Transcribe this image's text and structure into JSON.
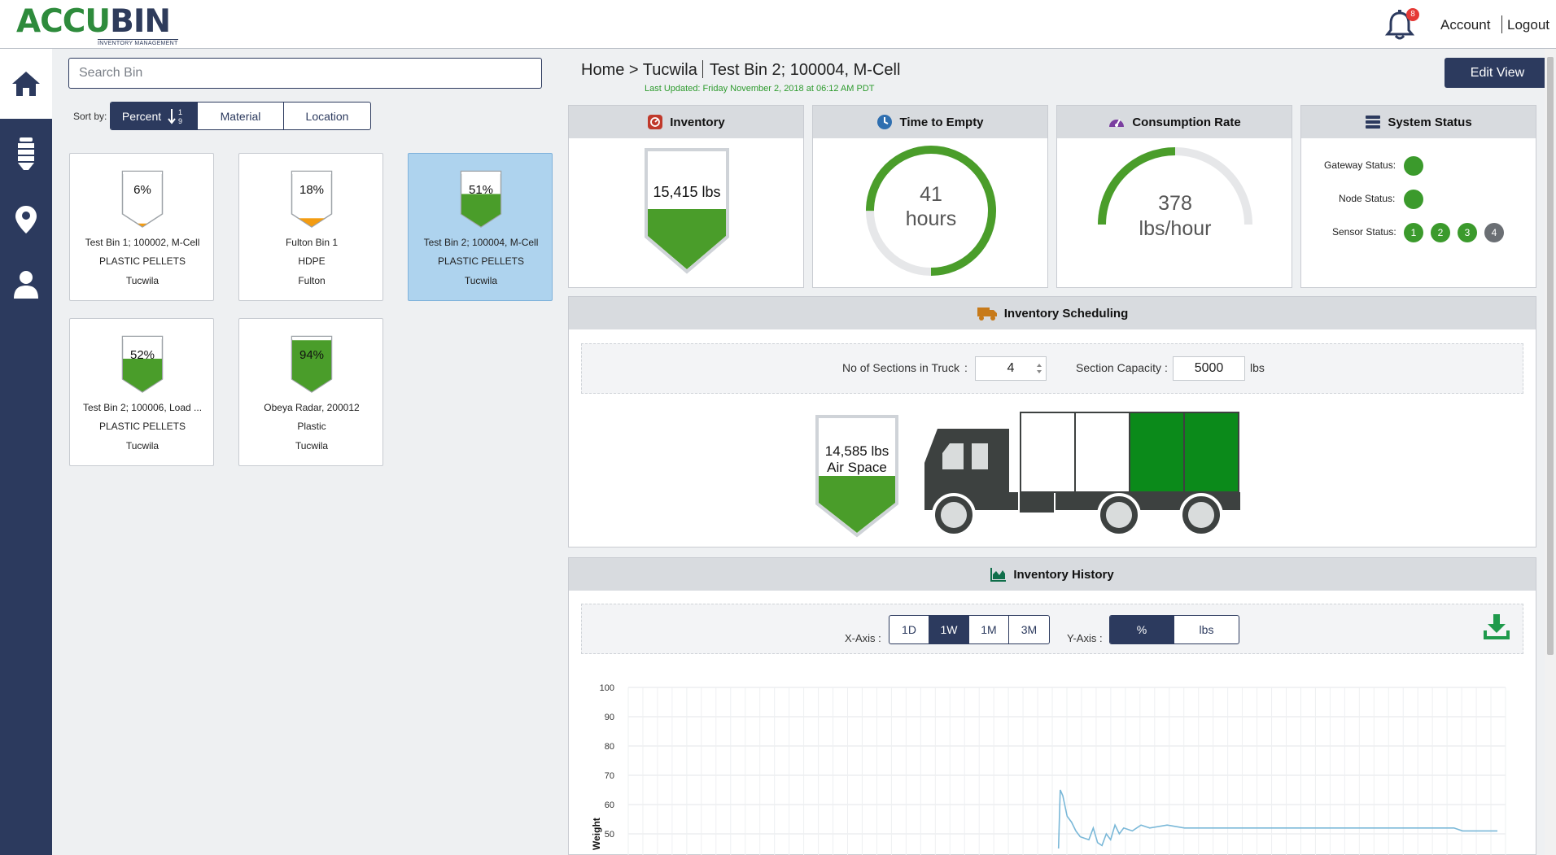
{
  "header": {
    "logo_main_accu": "ACCU",
    "logo_main_bin": "BIN",
    "logo_sub": "INVENTORY MANAGEMENT",
    "notifications_count": "8",
    "account_label": "Account",
    "logout_label": "Logout"
  },
  "sidenav": {
    "items": [
      "home-icon",
      "bin-icon",
      "location-pin-icon",
      "user-icon"
    ]
  },
  "search": {
    "placeholder": "Search Bin"
  },
  "sort": {
    "label": "Sort by:",
    "options": [
      {
        "label": "Percent",
        "icon": "sort-numeric-asc-icon",
        "active": true
      },
      {
        "label": "Material",
        "active": false
      },
      {
        "label": "Location",
        "active": false
      }
    ]
  },
  "bins": [
    {
      "percent_label": "6%",
      "fill": 0.06,
      "fill_color": "#f39c12",
      "name": "Test Bin 1; 100002, M-Cell",
      "material": "PLASTIC PELLETS",
      "location": "Tucwila",
      "selected": false
    },
    {
      "percent_label": "18%",
      "fill": 0.18,
      "fill_color": "#f39c12",
      "name": "Fulton Bin 1",
      "material": "HDPE",
      "location": "Fulton",
      "selected": false
    },
    {
      "percent_label": "51%",
      "fill": 0.51,
      "fill_color": "#4a9d2a",
      "name": "Test Bin 2; 100004, M-Cell",
      "material": "PLASTIC PELLETS",
      "location": "Tucwila",
      "selected": true
    },
    {
      "percent_label": "52%",
      "fill": 0.52,
      "fill_color": "#4a9d2a",
      "name": "Test Bin 2; 100006, Load ...",
      "material": "PLASTIC PELLETS",
      "location": "Tucwila",
      "selected": false
    },
    {
      "percent_label": "94%",
      "fill": 0.94,
      "fill_color": "#4a9d2a",
      "name": "Obeya Radar, 200012",
      "material": "Plastic",
      "location": "Tucwila",
      "selected": false
    }
  ],
  "breadcrumb": {
    "path": "Home > Tucwila",
    "bin": "Test Bin 2; 100004, M-Cell",
    "last_updated": "Last Updated: Friday November 2, 2018 at 06:12 AM PDT"
  },
  "edit_view_label": "Edit View",
  "cards": {
    "inventory": {
      "title": "Inventory",
      "value": "15,415 lbs",
      "fill": 0.51
    },
    "time_to_empty": {
      "title": "Time to Empty",
      "value": "41",
      "unit": "hours",
      "progress": 0.75
    },
    "consumption": {
      "title": "Consumption Rate",
      "value": "378",
      "unit": "lbs/hour",
      "gauge": 0.5
    },
    "system_status": {
      "title": "System Status",
      "gateway_label": "Gateway Status:",
      "node_label": "Node Status:",
      "sensor_label": "Sensor Status:",
      "sensors": [
        {
          "id": "1",
          "ok": true
        },
        {
          "id": "2",
          "ok": true
        },
        {
          "id": "3",
          "ok": true
        },
        {
          "id": "4",
          "ok": false
        }
      ]
    }
  },
  "scheduling": {
    "title": "Inventory Scheduling",
    "sections_label": "No of Sections in Truck",
    "sections_sep": ":",
    "sections_value": "4",
    "capacity_label": "Section Capacity :",
    "capacity_value": "5000",
    "capacity_unit": "lbs",
    "air_space_value": "14,585 lbs",
    "air_space_label": "Air Space",
    "truck_filled_sections": 2,
    "truck_total_sections": 4
  },
  "history": {
    "title": "Inventory History",
    "x_axis_label": "X-Axis :",
    "x_options": [
      {
        "label": "1D",
        "active": false
      },
      {
        "label": "1W",
        "active": true
      },
      {
        "label": "1M",
        "active": false
      },
      {
        "label": "3M",
        "active": false
      }
    ],
    "y_axis_label": "Y-Axis :",
    "y_options": [
      {
        "label": "%",
        "active": true
      },
      {
        "label": "lbs",
        "active": false
      }
    ],
    "download_icon": "download-icon"
  },
  "chart_data": {
    "type": "line",
    "ylabel": "Weight",
    "yticks": [
      50,
      60,
      70,
      80,
      90,
      100
    ],
    "ylim": [
      45,
      100
    ],
    "grid": true,
    "series": [
      {
        "color": "#7ab8d8",
        "x": [
          0,
          0.49,
          0.495,
          0.497,
          0.5,
          0.505,
          0.51,
          0.515,
          0.52,
          0.53,
          0.535,
          0.54,
          0.545,
          0.55,
          0.555,
          0.56,
          0.565,
          0.57,
          0.58,
          0.59,
          0.6,
          0.62,
          0.64,
          0.66,
          0.8,
          0.95,
          0.96,
          1.0
        ],
        "y": [
          null,
          null,
          45,
          65,
          63,
          56,
          54,
          51,
          49,
          48,
          52,
          47,
          46,
          50,
          48,
          53,
          50,
          52,
          51,
          53,
          52,
          53,
          52,
          52,
          52,
          52,
          51,
          51
        ]
      }
    ]
  }
}
